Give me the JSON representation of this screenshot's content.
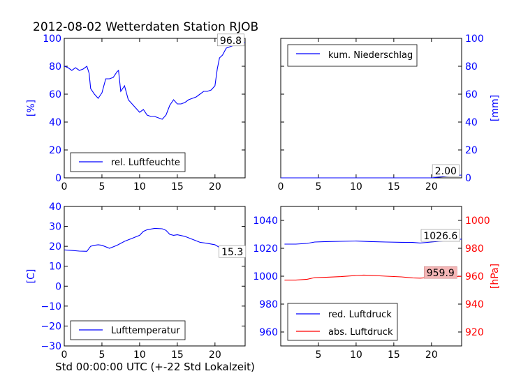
{
  "title": "2012-08-02 Wetterdaten Station RJOB",
  "xlabel": "Std 00:00:00 UTC (+-22 Std Lokalzeit)",
  "colors": {
    "blue": "#0000ff",
    "red": "#ff0000",
    "ann_bg": "#ffffff",
    "ann_red_bg": "#f4b6b6"
  },
  "chart_data": [
    {
      "type": "line",
      "id": "humidity",
      "ylabel": "[%]",
      "y_axis_side": "left",
      "xlim": [
        0,
        24
      ],
      "ylim": [
        0,
        100
      ],
      "xticks": [
        0,
        5,
        10,
        15,
        20
      ],
      "yticks": [
        0,
        20,
        40,
        60,
        80,
        100
      ],
      "legend": {
        "placement": "lower-center"
      },
      "annotation": {
        "text": "96.8",
        "x": 22.1,
        "y": 98.6
      },
      "series": [
        {
          "name": "rel. Luftfeuchte",
          "color": "#0000ff",
          "x": [
            0,
            0.5,
            1,
            1.5,
            2,
            2.5,
            3,
            3.3,
            3.5,
            4,
            4.5,
            5,
            5.5,
            6,
            6.5,
            7,
            7.2,
            7.5,
            8,
            8.5,
            9,
            9.5,
            10,
            10.5,
            11,
            11.5,
            12,
            12.5,
            13,
            13.5,
            14,
            14.5,
            15,
            15.5,
            16,
            16.5,
            17,
            17.5,
            18,
            18.5,
            19,
            19.5,
            20,
            20.3,
            20.6,
            21,
            21.5,
            22,
            22.5,
            23,
            23.5,
            24
          ],
          "y": [
            80,
            79,
            77,
            79,
            77,
            78,
            80,
            75,
            64,
            60,
            57,
            61,
            71,
            71,
            72,
            76,
            77,
            62,
            66,
            56,
            53,
            50,
            47,
            49,
            45,
            44,
            44,
            43,
            42,
            45,
            52,
            56,
            53,
            53,
            54,
            56,
            57,
            58,
            60,
            62,
            62,
            63,
            66,
            78,
            86,
            88,
            93,
            94,
            95,
            96,
            97,
            97
          ]
        }
      ]
    },
    {
      "type": "line",
      "id": "precipitation",
      "ylabel": "[mm]",
      "y_axis_side": "right",
      "xlim": [
        0,
        24
      ],
      "ylim": [
        0,
        100
      ],
      "xticks": [
        0,
        5,
        10,
        15,
        20
      ],
      "yticks": [
        0,
        20,
        40,
        60,
        80,
        100
      ],
      "legend": {
        "placement": "upper-left"
      },
      "annotation": {
        "text": "2.00",
        "x": 21.9,
        "y": 5.0
      },
      "series": [
        {
          "name": "kum. Niederschlag",
          "color": "#0000ff",
          "x": [
            0,
            6,
            12,
            18,
            20,
            21,
            22,
            23,
            24
          ],
          "y": [
            0,
            0,
            0,
            0,
            0,
            0.5,
            1.0,
            1.6,
            2.0
          ]
        }
      ]
    },
    {
      "type": "line",
      "id": "temperature",
      "ylabel": "[C]",
      "y_axis_side": "left",
      "xlim": [
        0,
        24
      ],
      "ylim": [
        -30,
        40
      ],
      "xticks": [
        0,
        5,
        10,
        15,
        20
      ],
      "yticks": [
        -30,
        -20,
        -10,
        0,
        10,
        20,
        30,
        40
      ],
      "legend": {
        "placement": "lower-center"
      },
      "annotation": {
        "text": "15.3",
        "x": 22.3,
        "y": 17.2
      },
      "series": [
        {
          "name": "Lufttemperatur",
          "color": "#0000ff",
          "x": [
            0,
            1,
            2,
            3,
            3.5,
            4,
            4.5,
            5,
            6,
            7,
            8,
            9,
            10,
            10.5,
            11,
            12,
            13,
            13.5,
            14,
            14.5,
            15,
            16,
            17,
            18,
            19,
            20,
            21,
            22,
            23,
            24
          ],
          "y": [
            18.2,
            17.9,
            17.6,
            17.5,
            20.0,
            20.5,
            20.8,
            20.5,
            19.0,
            20.5,
            22.5,
            24.0,
            25.5,
            27.5,
            28.3,
            29.0,
            28.8,
            28.0,
            26.0,
            25.5,
            25.8,
            25.0,
            23.5,
            22.0,
            21.5,
            20.8,
            18.5,
            16.8,
            16.0,
            15.3
          ]
        }
      ]
    },
    {
      "type": "line",
      "id": "pressure",
      "ylabel": "[hPa]",
      "y_axis_side": "dual",
      "xlim": [
        0,
        24
      ],
      "ylim_left": [
        950,
        1050
      ],
      "ylim_right": [
        910,
        1010
      ],
      "xticks": [
        5,
        10,
        15,
        20
      ],
      "yticks_left": [
        960,
        980,
        1000,
        1020,
        1040
      ],
      "yticks_right": [
        920,
        940,
        960,
        980,
        1000
      ],
      "legend": {
        "placement": "lower-left"
      },
      "annotations": [
        {
          "text": "1026.6",
          "x": 21.2,
          "y_left": 1029.0,
          "style": "white"
        },
        {
          "text": "959.9",
          "x": 21.2,
          "y_right": 962.4,
          "style": "red"
        }
      ],
      "series": [
        {
          "name": "red. Luftdruck",
          "color": "#0000ff",
          "axis": "left",
          "x": [
            0.5,
            2,
            3.5,
            4.5,
            6,
            8,
            10,
            12,
            14,
            16,
            17.5,
            18.5,
            20,
            21,
            22,
            23,
            24
          ],
          "y": [
            1023.0,
            1023.0,
            1023.5,
            1024.5,
            1024.8,
            1025.0,
            1025.2,
            1024.8,
            1024.5,
            1024.3,
            1024.2,
            1023.8,
            1024.5,
            1025.0,
            1025.5,
            1026.0,
            1026.6
          ]
        },
        {
          "name": "abs. Luftdruck",
          "color": "#ff0000",
          "axis": "right",
          "x": [
            0.5,
            2,
            3.5,
            4.5,
            6,
            8,
            10,
            11,
            12,
            14,
            16,
            17.5,
            18.5,
            20,
            21,
            22,
            23,
            24
          ],
          "y": [
            957.2,
            957.2,
            957.8,
            959.0,
            959.2,
            959.7,
            960.5,
            960.8,
            960.6,
            960.0,
            959.5,
            958.8,
            958.6,
            959.2,
            959.5,
            959.7,
            959.8,
            959.9
          ]
        }
      ]
    }
  ]
}
